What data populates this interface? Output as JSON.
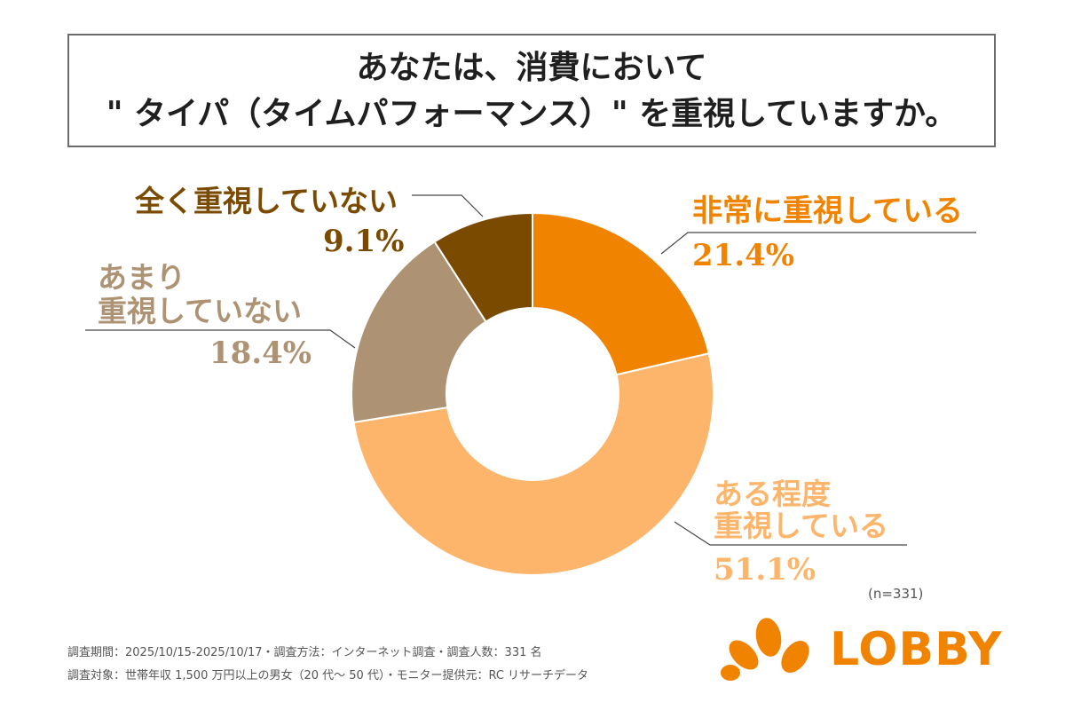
{
  "title": {
    "line1": "あなたは、消費において",
    "line2": "\" タイパ（タイムパフォーマンス）\" を重視していますか。"
  },
  "chart_data": {
    "type": "pie",
    "donut": true,
    "title": "あなたは、消費において \" タイパ（タイムパフォーマンス）\" を重視していますか。",
    "sample_note": "(n=331)",
    "series": [
      {
        "name": "非常に重視している",
        "value": 21.4,
        "value_label": "21.4%",
        "color": "#F08300"
      },
      {
        "name": "ある程度重視している",
        "value": 51.1,
        "value_label": "51.1%",
        "color": "#FDB56B"
      },
      {
        "name": "あまり重視していない",
        "value": 18.4,
        "value_label": "18.4%",
        "color": "#AD9373"
      },
      {
        "name": "全く重視していない",
        "value": 9.1,
        "value_label": "9.1%",
        "color": "#7A4A00"
      }
    ],
    "labels": {
      "very": {
        "name": "非常に重視している",
        "value": "21.4%"
      },
      "some_line1": "ある程度",
      "some_line2": "重視している",
      "some_value": "51.1%",
      "notmuch_line1": "あまり",
      "notmuch_line2": "重視していない",
      "notmuch_value": "18.4%",
      "notatall": {
        "name": "全く重視していない",
        "value": "9.1%"
      }
    }
  },
  "footer": {
    "line1": "調査期間：2025/10/15-2025/10/17・調査方法：インターネット調査・調査人数：331 名",
    "line2": "調査対象：世帯年収 1,500 万円以上の男女（20 代〜 50 代）・モニター提供元：RC リサーチデータ"
  },
  "logo": {
    "text": "LOBBY",
    "color": "#F08300"
  }
}
